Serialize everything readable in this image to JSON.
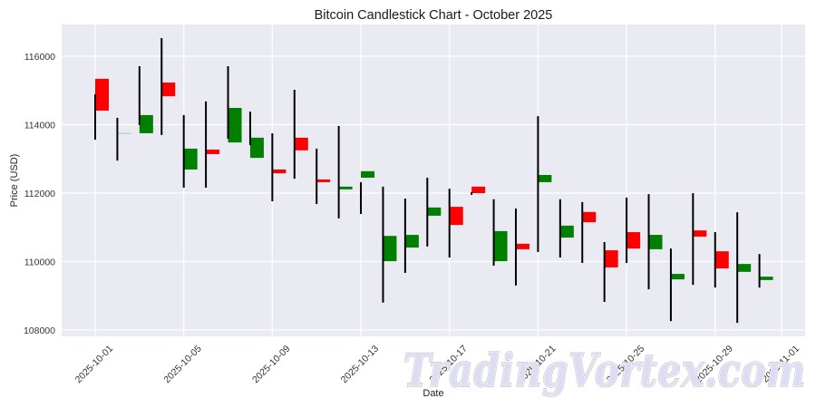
{
  "chart_data": {
    "type": "candlestick",
    "title": "Bitcoin Candlestick Chart - October 2025",
    "xlabel": "Date",
    "ylabel": "Price (USD)",
    "ylim": [
      107800,
      116900
    ],
    "yticks": [
      108000,
      110000,
      112000,
      114000,
      116000
    ],
    "xticks": [
      "2025-10-01",
      "2025-10-05",
      "2025-10-09",
      "2025-10-13",
      "2025-10-17",
      "2025-10-21",
      "2025-10-25",
      "2025-10-29",
      "2025-11-01"
    ],
    "grid": true,
    "legend": null,
    "colors": {
      "up": "#008000",
      "down": "#ff0000",
      "doji": "#a8d8a8",
      "wick": "#000000",
      "plot_bg": "#eaeaf2",
      "grid": "#ffffff"
    },
    "candles": [
      {
        "date": "2025-10-01",
        "open": 115340,
        "close": 114410,
        "wick_high": 114890,
        "wick_low": 113560
      },
      {
        "date": "2025-10-02",
        "open": 113760,
        "close": 113760,
        "wick_high": 114200,
        "wick_low": 112950
      },
      {
        "date": "2025-10-03",
        "open": 113750,
        "close": 114280,
        "wick_high": 115710,
        "wick_low": 113990
      },
      {
        "date": "2025-10-04",
        "open": 115230,
        "close": 114830,
        "wick_high": 116530,
        "wick_low": 113700
      },
      {
        "date": "2025-10-05",
        "open": 112690,
        "close": 113300,
        "wick_high": 114280,
        "wick_low": 112160
      },
      {
        "date": "2025-10-06",
        "open": 113270,
        "close": 113140,
        "wick_high": 114680,
        "wick_low": 112160
      },
      {
        "date": "2025-10-07",
        "open": 113480,
        "close": 114490,
        "wick_high": 115710,
        "wick_low": 113590
      },
      {
        "date": "2025-10-08",
        "open": 113030,
        "close": 113620,
        "wick_high": 114380,
        "wick_low": 113400
      },
      {
        "date": "2025-10-09",
        "open": 112690,
        "close": 112580,
        "wick_high": 113750,
        "wick_low": 111760
      },
      {
        "date": "2025-10-10",
        "open": 113620,
        "close": 113250,
        "wick_high": 115020,
        "wick_low": 112420
      },
      {
        "date": "2025-10-11",
        "open": 112400,
        "close": 112320,
        "wick_high": 113300,
        "wick_low": 111680
      },
      {
        "date": "2025-10-12",
        "open": 112110,
        "close": 112190,
        "wick_high": 113960,
        "wick_low": 111260
      },
      {
        "date": "2025-10-13",
        "open": 112450,
        "close": 112640,
        "wick_high": 112320,
        "wick_low": 111390
      },
      {
        "date": "2025-10-14",
        "open": 110010,
        "close": 110750,
        "wick_high": 112190,
        "wick_low": 108800
      },
      {
        "date": "2025-10-15",
        "open": 110410,
        "close": 110780,
        "wick_high": 111840,
        "wick_low": 109670
      },
      {
        "date": "2025-10-16",
        "open": 111340,
        "close": 111580,
        "wick_high": 112450,
        "wick_low": 110440
      },
      {
        "date": "2025-10-17",
        "open": 111600,
        "close": 111070,
        "wick_high": 112130,
        "wick_low": 110120
      },
      {
        "date": "2025-10-18",
        "open": 112190,
        "close": 112000,
        "wick_high": 112030,
        "wick_low": 111950
      },
      {
        "date": "2025-10-19",
        "open": 110010,
        "close": 110890,
        "wick_high": 111820,
        "wick_low": 109880
      },
      {
        "date": "2025-10-20",
        "open": 110520,
        "close": 110360,
        "wick_high": 111550,
        "wick_low": 109300
      },
      {
        "date": "2025-10-21",
        "open": 112320,
        "close": 112530,
        "wick_high": 114250,
        "wick_low": 110280
      },
      {
        "date": "2025-10-22",
        "open": 110700,
        "close": 111050,
        "wick_high": 111820,
        "wick_low": 110120
      },
      {
        "date": "2025-10-23",
        "open": 111450,
        "close": 111150,
        "wick_high": 111740,
        "wick_low": 109960
      },
      {
        "date": "2025-10-24",
        "open": 110330,
        "close": 109830,
        "wick_high": 110570,
        "wick_low": 108820
      },
      {
        "date": "2025-10-25",
        "open": 110860,
        "close": 110380,
        "wick_high": 111870,
        "wick_low": 109960
      },
      {
        "date": "2025-10-26",
        "open": 110360,
        "close": 110780,
        "wick_high": 111970,
        "wick_low": 109190
      },
      {
        "date": "2025-10-27",
        "open": 109480,
        "close": 109640,
        "wick_high": 110380,
        "wick_low": 108260
      },
      {
        "date": "2025-10-28",
        "open": 110910,
        "close": 110730,
        "wick_high": 112000,
        "wick_low": 109320
      },
      {
        "date": "2025-10-29",
        "open": 110300,
        "close": 109800,
        "wick_high": 110860,
        "wick_low": 109240
      },
      {
        "date": "2025-10-30",
        "open": 109700,
        "close": 109930,
        "wick_high": 111440,
        "wick_low": 108210
      },
      {
        "date": "2025-10-31",
        "open": 109460,
        "close": 109560,
        "wick_high": 110220,
        "wick_low": 109240
      }
    ]
  },
  "watermark": {
    "text": "TradingVortex.com"
  }
}
